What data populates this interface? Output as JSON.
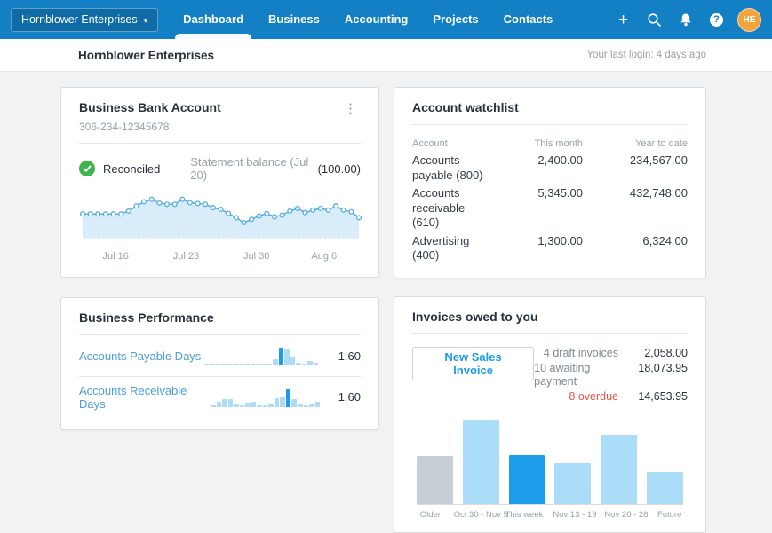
{
  "colors": {
    "nav_bg": "#1380c5",
    "page_bg": "#f1f2f4",
    "dark_text": "#27313d",
    "gray_text": "#98a1ab",
    "link_blue": "#4a9fd8",
    "green": "#3eb54a",
    "red": "#e3554a",
    "orange_avatar": "#f2a43c",
    "bar_gray": "#c7ced4",
    "bar_light": "#abdcf8",
    "bar_dark": "#1d9ce9",
    "area_fill": "#d9ecfa",
    "line_blue": "#56aee2"
  },
  "nav": {
    "company_selector": "Hornblower Enterprises",
    "items": [
      {
        "label": "Dashboard",
        "active": true
      },
      {
        "label": "Business",
        "active": false
      },
      {
        "label": "Accounting",
        "active": false
      },
      {
        "label": "Projects",
        "active": false
      },
      {
        "label": "Contacts",
        "active": false
      }
    ],
    "avatar_initials": "HE"
  },
  "header": {
    "title": "Hornblower Enterprises",
    "last_login_label": "Your last login:",
    "last_login_link": "4 days ago"
  },
  "bank_account_card": {
    "title": "Business Bank Account",
    "account_number": "306-234-12345678",
    "reconciled_label": "Reconciled",
    "statement_label": "Statement balance (Jul 20)",
    "statement_value": "(100.00)"
  },
  "business_performance_card": {
    "title": "Business Performance",
    "rows": [
      {
        "label": "Accounts Payable Days",
        "value": "1.60"
      },
      {
        "label": "Accounts Receivable Days",
        "value": "1.60"
      }
    ]
  },
  "account_watchlist_card": {
    "title": "Account watchlist",
    "columns": [
      "Account",
      "This month",
      "Year to date"
    ],
    "rows": [
      {
        "account": "Accounts payable (800)",
        "this_month": "2,400.00",
        "year_to_date": "234,567.00"
      },
      {
        "account": "Accounts receivable (610)",
        "this_month": "5,345.00",
        "year_to_date": "432,748.00"
      },
      {
        "account": "Advertising (400)",
        "this_month": "1,300.00",
        "year_to_date": "6,324.00"
      }
    ]
  },
  "invoices_card": {
    "title": "Invoices owed to you",
    "button_label": "New Sales Invoice",
    "summary": [
      {
        "label": "4 draft invoices",
        "value": "2,058.00",
        "overdue": false
      },
      {
        "label": "10 awaiting payment",
        "value": "18,073.95",
        "overdue": false
      },
      {
        "label": "8 overdue",
        "value": "14,653.95",
        "overdue": true
      }
    ]
  },
  "chart_data": [
    {
      "id": "bank_balance_sparkline",
      "type": "area",
      "title": "Business Bank Account statement balance over time",
      "x_tick_labels": [
        "Jul 16",
        "Jul 23",
        "Jul 30",
        "Aug 6"
      ],
      "x_tick_positions_pct": [
        13,
        38,
        63,
        87
      ],
      "values_relative": [
        55,
        55,
        55,
        55,
        55,
        55,
        62,
        74,
        84,
        90,
        81,
        78,
        78,
        90,
        82,
        80,
        78,
        70,
        66,
        56,
        46,
        34,
        42,
        50,
        56,
        48,
        52,
        62,
        68,
        58,
        64,
        68,
        64,
        74,
        64,
        60,
        46
      ],
      "ylim": [
        0,
        100
      ],
      "grid": false,
      "markers": "circle"
    },
    {
      "id": "accounts_payable_days",
      "type": "bar",
      "title": "Accounts Payable Days trend",
      "current_value": "1.60",
      "highlight_index": 13,
      "values_relative": [
        12,
        12,
        12,
        12,
        12,
        12,
        12,
        12,
        12,
        12,
        12,
        12,
        35,
        100,
        90,
        50,
        14,
        5,
        25,
        14
      ],
      "ylim": [
        0,
        100
      ],
      "grid": false
    },
    {
      "id": "accounts_receivable_days",
      "type": "bar",
      "title": "Accounts Receivable Days trend",
      "current_value": "1.60",
      "highlight_index": 13,
      "values_relative": [
        10,
        30,
        45,
        45,
        18,
        8,
        25,
        30,
        10,
        8,
        18,
        50,
        55,
        100,
        45,
        18,
        8,
        15,
        30
      ],
      "ylim": [
        0,
        100
      ],
      "grid": false
    },
    {
      "id": "invoices_owed",
      "type": "bar",
      "title": "Invoices owed to you by week",
      "categories": [
        "Older",
        "Oct 30 - Nov 5",
        "This week",
        "Nov 13 - 19",
        "Nov 20 - 26",
        "Future"
      ],
      "values_relative": [
        57,
        100,
        58,
        48,
        83,
        38
      ],
      "bar_styles": [
        "gray",
        "light",
        "dark",
        "light",
        "light",
        "light"
      ],
      "ylim": [
        0,
        100
      ],
      "grid": false
    }
  ]
}
